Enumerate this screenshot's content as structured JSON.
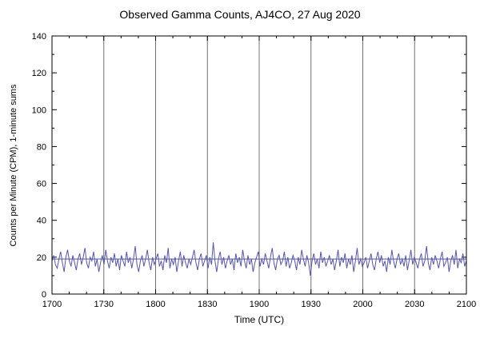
{
  "page": {
    "background": "#ffffff"
  },
  "chart_data": {
    "type": "line",
    "title": "Observed Gamma Counts, AJ4CO, 27 Aug 2020",
    "xlabel": "Time (UTC)",
    "ylabel": "Counts per Minute (CPM), 1-minute sums",
    "x_tick_labels": [
      "1700",
      "1730",
      "1800",
      "1830",
      "1900",
      "1930",
      "2000",
      "2030",
      "2100"
    ],
    "x_range_minutes": [
      0,
      240
    ],
    "x_minor_step_minutes": 10,
    "y_ticks": [
      0,
      20,
      40,
      60,
      80,
      100,
      120,
      140
    ],
    "y_minor_step": 10,
    "ylim": [
      0,
      140
    ],
    "grid": "vertical-only",
    "legend_position": "none",
    "line_color": "#5555aa",
    "grid_color": "#707070",
    "axis_color": "#000000",
    "mean_line": 19,
    "series": [
      {
        "name": "1-minute gamma count sums",
        "values": [
          18,
          21,
          16,
          14,
          19,
          23,
          17,
          12,
          20,
          24,
          18,
          15,
          21,
          17,
          13,
          19,
          22,
          16,
          20,
          25,
          17,
          14,
          20,
          18,
          23,
          15,
          19,
          12,
          17,
          21,
          16,
          24,
          18,
          14,
          20,
          17,
          22,
          15,
          19,
          13,
          21,
          18,
          15,
          23,
          17,
          20,
          14,
          19,
          26,
          16,
          12,
          18,
          21,
          15,
          19,
          24,
          17,
          13,
          20,
          16,
          19,
          22,
          15,
          18,
          13,
          21,
          17,
          25,
          14,
          19,
          16,
          20,
          12,
          18,
          23,
          15,
          21,
          17,
          14,
          19,
          16,
          20,
          24,
          17,
          13,
          19,
          22,
          15,
          18,
          21,
          14,
          20,
          16,
          28,
          18,
          12,
          19,
          23,
          16,
          20,
          14,
          18,
          21,
          16,
          19,
          13,
          22,
          17,
          20,
          15,
          24,
          18,
          14,
          21,
          16,
          19,
          12,
          17,
          20,
          23,
          15,
          19,
          16,
          22,
          18,
          14,
          20,
          25,
          17,
          13,
          19,
          21,
          16,
          18,
          23,
          15,
          20,
          14,
          17,
          21,
          18,
          13,
          20,
          16,
          24,
          19,
          15,
          21,
          17,
          10,
          18,
          22,
          16,
          19,
          14,
          23,
          17,
          20,
          15,
          18,
          21,
          16,
          19,
          13,
          18,
          24,
          15,
          20,
          17,
          22,
          14,
          19,
          16,
          21,
          12,
          18,
          25,
          16,
          19,
          15,
          17,
          20,
          14,
          18,
          22,
          16,
          13,
          19,
          23,
          17,
          21,
          15,
          18,
          12,
          20,
          16,
          24,
          18,
          14,
          19,
          22,
          16,
          19,
          15,
          21,
          13,
          18,
          24,
          16,
          20,
          17,
          14,
          19,
          22,
          15,
          18,
          26,
          17,
          13,
          20,
          16,
          21,
          18,
          14,
          19,
          23,
          15,
          17,
          20,
          12,
          18,
          21,
          16,
          24,
          14,
          19,
          17,
          22,
          15,
          18
        ]
      }
    ]
  }
}
